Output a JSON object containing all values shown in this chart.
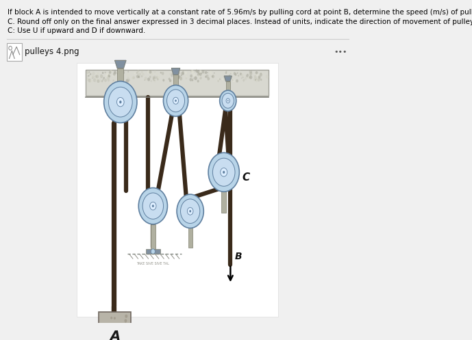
{
  "title_text1": "If block A is intended to move vertically at a constant rate of 5.96m/s by pulling cord at point B, determine the speed (m/s) of pulley",
  "title_text2": "C. Round off only on the final answer expressed in 3 decimal places. Instead of units, indicate the direction of movement of pulley",
  "title_text3": "C: Use U if upward and D if downward.",
  "file_label": "pulleys 4.png",
  "dots_label": "•••",
  "bg_color": "#f0f0f0",
  "diagram_bg": "#ffffff",
  "label_A": "A",
  "label_B": "B",
  "label_C": "C",
  "text_color": "#000000",
  "pulley_rim_color": "#b8d4e8",
  "pulley_hub_color": "#ddeeff",
  "pulley_edge": "#6080a0",
  "shaft_color": "#b0b0a0",
  "shaft_edge": "#808070",
  "rope_color": "#3a2a1a",
  "ceiling_top": "#d8d8d0",
  "ceiling_bot": "#c0c0b8",
  "block_face": "#b8b4a8",
  "block_edge": "#706860",
  "arrow_color": "#000000",
  "bracket_color": "#8090a0",
  "floor_color": "#909088"
}
